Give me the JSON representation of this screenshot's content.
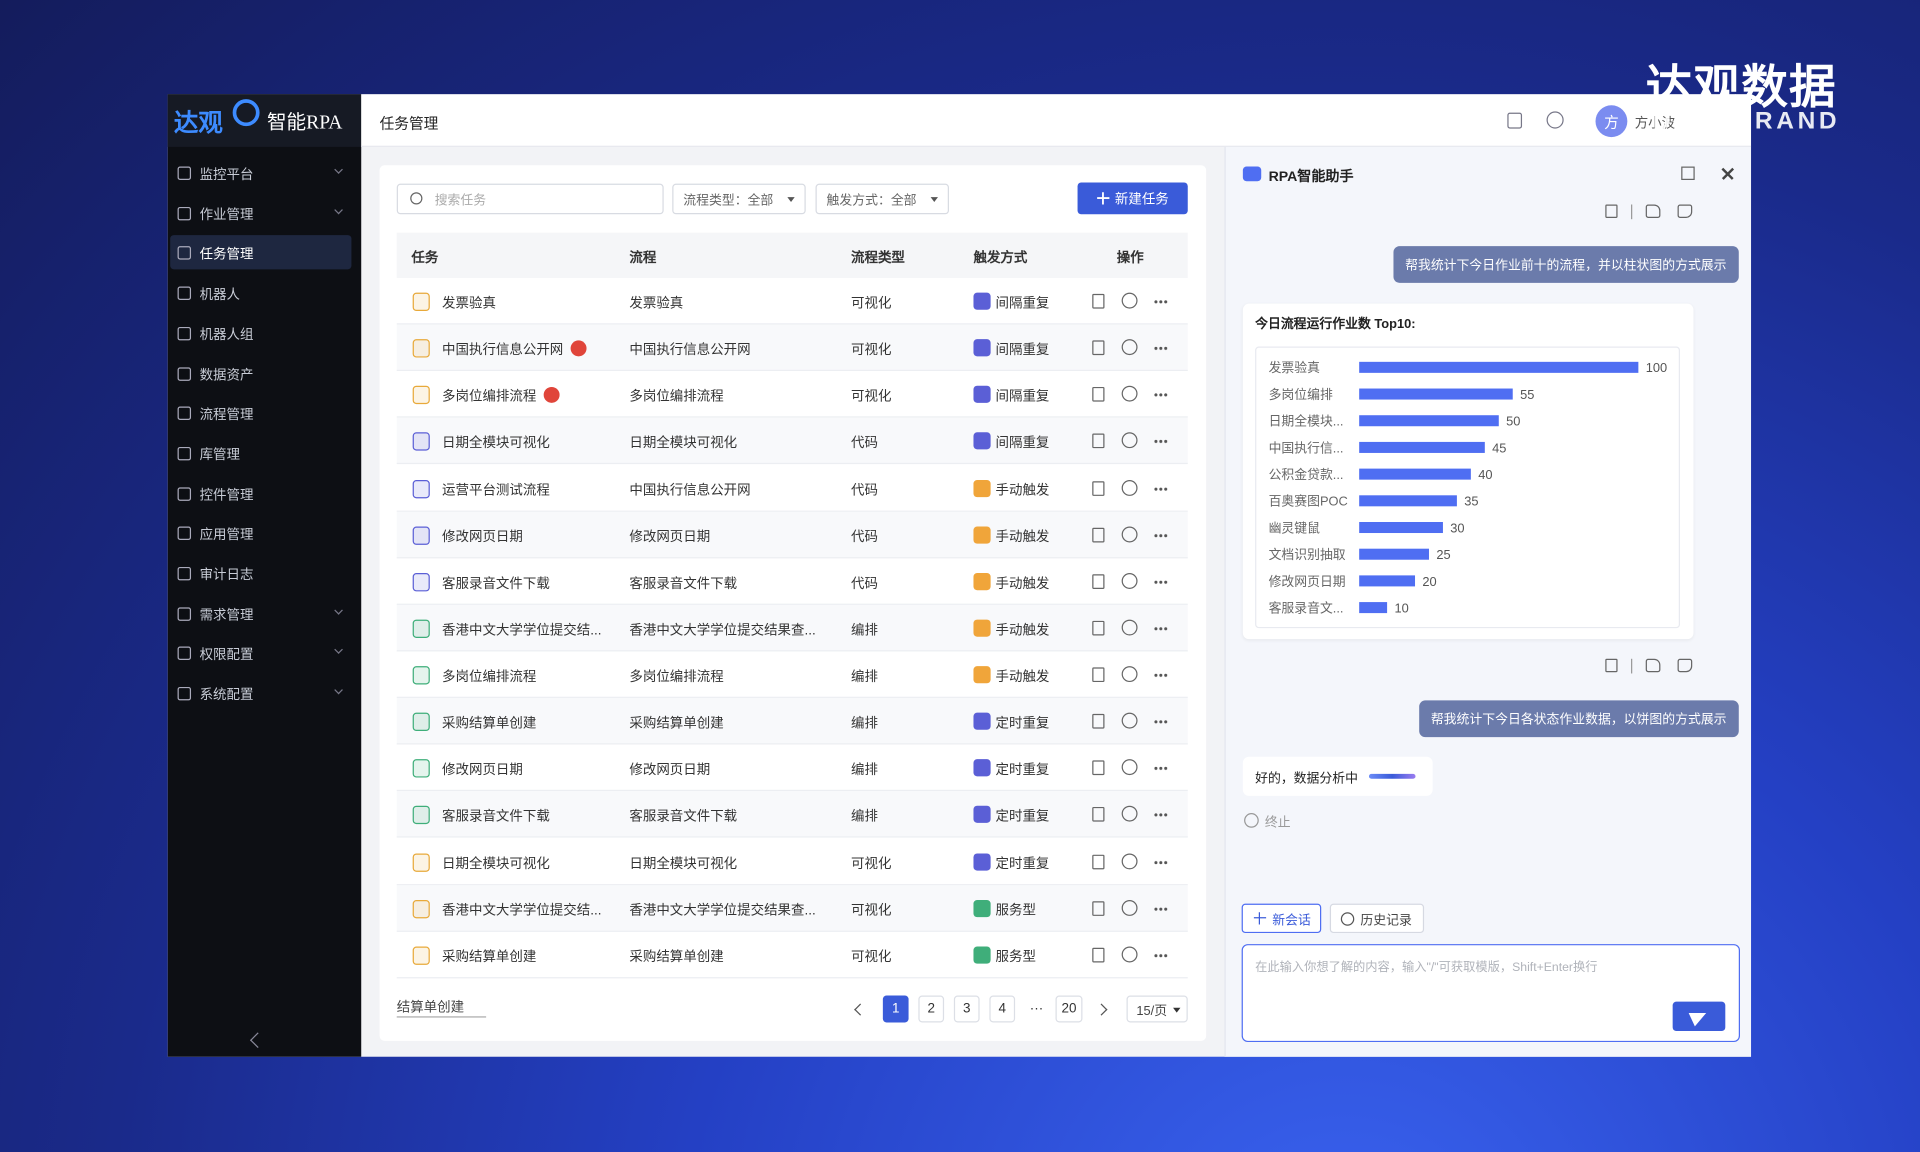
{
  "brand": {
    "name": "达观数据",
    "sub": "DATAGRAND"
  },
  "sidebar": {
    "logo_a": "达观",
    "logo_b": "智能RPA",
    "menu": [
      {
        "label": "监控平台",
        "expandable": true
      },
      {
        "label": "作业管理",
        "expandable": true
      },
      {
        "label": "任务管理",
        "active": true
      },
      {
        "label": "机器人"
      },
      {
        "label": "机器人组"
      },
      {
        "label": "数据资产"
      },
      {
        "label": "流程管理"
      },
      {
        "label": "库管理"
      },
      {
        "label": "控件管理"
      },
      {
        "label": "应用管理"
      },
      {
        "label": "审计日志"
      },
      {
        "label": "需求管理",
        "expandable": true
      },
      {
        "label": "权限配置",
        "expandable": true
      },
      {
        "label": "系统配置",
        "expandable": true
      }
    ]
  },
  "header": {
    "title": "任务管理",
    "user_initial": "方",
    "user_name": "方小波"
  },
  "toolbar": {
    "search_placeholder": "搜索任务",
    "filters": [
      "流程类型：全部",
      "触发方式：全部"
    ],
    "new_button": "新建任务"
  },
  "table": {
    "columns": [
      "任务",
      "流程",
      "流程类型",
      "触发方式",
      "操作"
    ],
    "rows": [
      {
        "cells": [
          "发票验真",
          "发票验真",
          "可视化",
          "间隔重复"
        ],
        "icon": "#e8a93a",
        "trigger_icon": "#5b5fd6"
      },
      {
        "cells": [
          "中国执行信息公开网",
          "中国执行信息公开网",
          "可视化",
          "间隔重复"
        ],
        "icon": "#e8a93a",
        "trigger_icon": "#5b5fd6",
        "alert": true
      },
      {
        "cells": [
          "多岗位编排流程",
          "多岗位编排流程",
          "可视化",
          "间隔重复"
        ],
        "icon": "#e8a93a",
        "trigger_icon": "#5b5fd6",
        "alert": true
      },
      {
        "cells": [
          "日期全模块可视化",
          "日期全模块可视化",
          "代码",
          "间隔重复"
        ],
        "icon": "#5b5fd6",
        "trigger_icon": "#5b5fd6"
      },
      {
        "cells": [
          "运营平台测试流程",
          "中国执行信息公开网",
          "代码",
          "手动触发"
        ],
        "icon": "#5b5fd6",
        "trigger_icon": "#f0a53a"
      },
      {
        "cells": [
          "修改网页日期",
          "修改网页日期",
          "代码",
          "手动触发"
        ],
        "icon": "#5b5fd6",
        "trigger_icon": "#f0a53a"
      },
      {
        "cells": [
          "客服录音文件下载",
          "客服录音文件下载",
          "代码",
          "手动触发"
        ],
        "icon": "#5b5fd6",
        "trigger_icon": "#f0a53a"
      },
      {
        "cells": [
          "香港中文大学学位提交结...",
          "香港中文大学学位提交结果查...",
          "编排",
          "手动触发"
        ],
        "icon": "#3fae7a",
        "trigger_icon": "#f0a53a"
      },
      {
        "cells": [
          "多岗位编排流程",
          "多岗位编排流程",
          "编排",
          "手动触发"
        ],
        "icon": "#3fae7a",
        "trigger_icon": "#f0a53a"
      },
      {
        "cells": [
          "采购结算单创建",
          "采购结算单创建",
          "编排",
          "定时重复"
        ],
        "icon": "#3fae7a",
        "trigger_icon": "#5b5fd6"
      },
      {
        "cells": [
          "修改网页日期",
          "修改网页日期",
          "编排",
          "定时重复"
        ],
        "icon": "#3fae7a",
        "trigger_icon": "#5b5fd6"
      },
      {
        "cells": [
          "客服录音文件下载",
          "客服录音文件下载",
          "编排",
          "定时重复"
        ],
        "icon": "#3fae7a",
        "trigger_icon": "#5b5fd6"
      },
      {
        "cells": [
          "日期全模块可视化",
          "日期全模块可视化",
          "可视化",
          "定时重复"
        ],
        "icon": "#e8a93a",
        "trigger_icon": "#5b5fd6"
      },
      {
        "cells": [
          "香港中文大学学位提交结...",
          "香港中文大学学位提交结果查...",
          "可视化",
          "服务型"
        ],
        "icon": "#e8a93a",
        "trigger_icon": "#3fae7a"
      },
      {
        "cells": [
          "采购结算单创建",
          "采购结算单创建",
          "可视化",
          "服务型"
        ],
        "icon": "#e8a93a",
        "trigger_icon": "#3fae7a"
      }
    ]
  },
  "pagination": {
    "pages": [
      1,
      2,
      3,
      4,
      "···",
      20
    ],
    "current": 1,
    "page_size": "15/页"
  },
  "ghost_text": "结算单创建",
  "assistant": {
    "title": "RPA智能助手",
    "prompt_1": "帮我统计下今日作业前十的流程，并以柱状图的方式展示",
    "chart": {
      "title": "今日流程运行作业数 Top10:",
      "categories": [
        "发票验真",
        "多岗位编排",
        "日期全模块...",
        "中国执行信...",
        "公积金贷款...",
        "百奥赛图POC",
        "幽灵键鼠",
        "文档识别抽取",
        "修改网页日期",
        "客服录音文..."
      ],
      "values": [
        100,
        55,
        50,
        45,
        40,
        35,
        30,
        25,
        20,
        10
      ],
      "xlim": [
        0,
        100
      ],
      "color": "#4f6ef2"
    },
    "prompt_2": "帮我统计下今日各状态作业数据，以饼图的方式展示",
    "reply": "好的，数据分析中",
    "stop": "终止",
    "new_chat": "新会话",
    "history": "历史记录",
    "input_placeholder": "在此输入你想了解的内容，输入\"/\"可获取模版，Shift+Enter换行"
  }
}
